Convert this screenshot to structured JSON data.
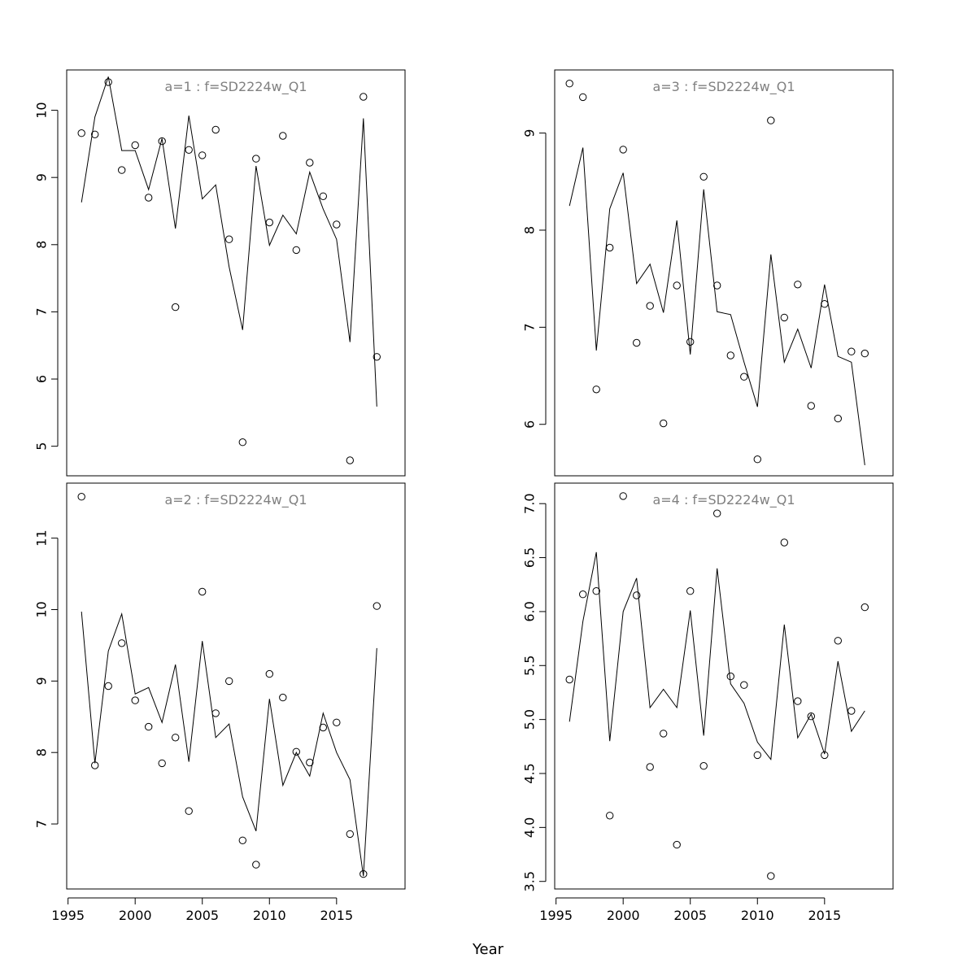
{
  "figure": {
    "xlabel": "Year"
  },
  "chart_data": [
    {
      "type": "scatter",
      "title": "a=1  :  f=SD2224w_Q1",
      "xlabel": "",
      "ylabel": "",
      "xlim": [
        1994.9,
        2020.1
      ],
      "ylim": [
        4.56,
        10.6
      ],
      "y_ticks": [
        5,
        6,
        7,
        8,
        9,
        10
      ],
      "x_ticks": [
        1995,
        2000,
        2005,
        2010,
        2015
      ],
      "show_x_ticks": false,
      "x": [
        1996,
        1997,
        1998,
        1999,
        2000,
        2001,
        2002,
        2003,
        2004,
        2005,
        2006,
        2007,
        2008,
        2009,
        2010,
        2011,
        2012,
        2013,
        2014,
        2015,
        2016,
        2017,
        2018
      ],
      "series": [
        {
          "kind": "points",
          "values": [
            9.66,
            9.64,
            10.42,
            9.11,
            9.48,
            8.7,
            9.54,
            7.07,
            9.41,
            9.33,
            9.71,
            8.08,
            5.06,
            9.28,
            8.33,
            9.62,
            7.92,
            9.22,
            8.72,
            8.3,
            4.79,
            10.2,
            6.33
          ]
        },
        {
          "kind": "line",
          "values": [
            8.63,
            9.9,
            10.5,
            9.4,
            9.4,
            8.82,
            9.58,
            8.24,
            9.92,
            8.68,
            8.89,
            7.67,
            6.73,
            9.17,
            7.99,
            8.44,
            8.16,
            9.08,
            8.53,
            8.08,
            6.55,
            9.88,
            5.59
          ]
        }
      ]
    },
    {
      "type": "scatter",
      "title": "a=3  :  f=SD2224w_Q1",
      "xlabel": "",
      "ylabel": "",
      "xlim": [
        1994.9,
        2020.1
      ],
      "ylim": [
        5.47,
        9.65
      ],
      "y_ticks": [
        6,
        7,
        8,
        9
      ],
      "x_ticks": [
        1995,
        2000,
        2005,
        2010,
        2015
      ],
      "show_x_ticks": false,
      "x": [
        1996,
        1997,
        1998,
        1999,
        2000,
        2001,
        2002,
        2003,
        2004,
        2005,
        2006,
        2007,
        2008,
        2009,
        2010,
        2011,
        2012,
        2013,
        2014,
        2015,
        2016,
        2017,
        2018
      ],
      "series": [
        {
          "kind": "points",
          "values": [
            9.51,
            9.37,
            6.36,
            7.82,
            8.83,
            6.84,
            7.22,
            6.01,
            7.43,
            6.85,
            8.55,
            7.43,
            6.71,
            6.49,
            5.64,
            9.13,
            7.1,
            7.44,
            6.19,
            7.24,
            6.06,
            6.75,
            6.73
          ]
        },
        {
          "kind": "line",
          "values": [
            8.25,
            8.85,
            6.76,
            8.22,
            8.59,
            7.45,
            7.65,
            7.15,
            8.1,
            6.72,
            8.42,
            7.16,
            7.13,
            6.64,
            6.18,
            7.75,
            6.64,
            6.98,
            6.58,
            7.44,
            6.7,
            6.64,
            5.58
          ]
        }
      ]
    },
    {
      "type": "scatter",
      "title": "a=2  :  f=SD2224w_Q1",
      "xlabel": "",
      "ylabel": "",
      "xlim": [
        1994.9,
        2020.1
      ],
      "ylim": [
        6.09,
        11.77
      ],
      "y_ticks": [
        7,
        8,
        9,
        10,
        11
      ],
      "x_ticks": [
        1995,
        2000,
        2005,
        2010,
        2015
      ],
      "show_x_ticks": true,
      "x": [
        1996,
        1997,
        1998,
        1999,
        2000,
        2001,
        2002,
        2003,
        2004,
        2005,
        2006,
        2007,
        2008,
        2009,
        2010,
        2011,
        2012,
        2013,
        2014,
        2015,
        2016,
        2017,
        2018
      ],
      "series": [
        {
          "kind": "points",
          "values": [
            11.58,
            7.82,
            8.93,
            9.53,
            8.73,
            8.36,
            7.85,
            8.21,
            7.18,
            10.25,
            8.55,
            9.0,
            6.77,
            6.43,
            9.1,
            8.77,
            8.01,
            7.86,
            8.35,
            8.42,
            6.86,
            6.3,
            10.05
          ]
        },
        {
          "kind": "line",
          "values": [
            9.97,
            7.85,
            9.42,
            9.94,
            8.82,
            8.91,
            8.42,
            9.23,
            7.87,
            9.56,
            8.21,
            8.4,
            7.38,
            6.9,
            8.75,
            7.54,
            8.0,
            7.67,
            8.55,
            8.0,
            7.62,
            6.27,
            9.46
          ]
        }
      ]
    },
    {
      "type": "scatter",
      "title": "a=4  :  f=SD2224w_Q1",
      "xlabel": "",
      "ylabel": "",
      "xlim": [
        1994.9,
        2020.1
      ],
      "ylim": [
        3.43,
        7.19
      ],
      "y_ticks": [
        3.5,
        4.0,
        4.5,
        5.0,
        5.5,
        6.0,
        6.5,
        7.0
      ],
      "y_tick_labels": [
        "3.5",
        "4.0",
        "4.5",
        "5.0",
        "5.5",
        "6.0",
        "6.5",
        "7.0"
      ],
      "x_ticks": [
        1995,
        2000,
        2005,
        2010,
        2015
      ],
      "show_x_ticks": true,
      "x": [
        1996,
        1997,
        1998,
        1999,
        2000,
        2001,
        2002,
        2003,
        2004,
        2005,
        2006,
        2007,
        2008,
        2009,
        2010,
        2011,
        2012,
        2013,
        2014,
        2015,
        2016,
        2017,
        2018
      ],
      "series": [
        {
          "kind": "points",
          "values": [
            5.37,
            6.16,
            6.19,
            4.11,
            7.07,
            6.15,
            4.56,
            4.87,
            3.84,
            6.19,
            4.57,
            6.91,
            5.4,
            5.32,
            4.67,
            3.55,
            6.64,
            5.17,
            5.03,
            4.67,
            5.73,
            5.08,
            6.04
          ]
        },
        {
          "kind": "line",
          "values": [
            4.98,
            5.91,
            6.55,
            4.8,
            6.0,
            6.31,
            5.11,
            5.28,
            5.11,
            6.01,
            4.85,
            6.4,
            5.33,
            5.15,
            4.79,
            4.63,
            5.88,
            4.83,
            5.05,
            4.68,
            5.54,
            4.89,
            5.08
          ]
        }
      ]
    }
  ]
}
